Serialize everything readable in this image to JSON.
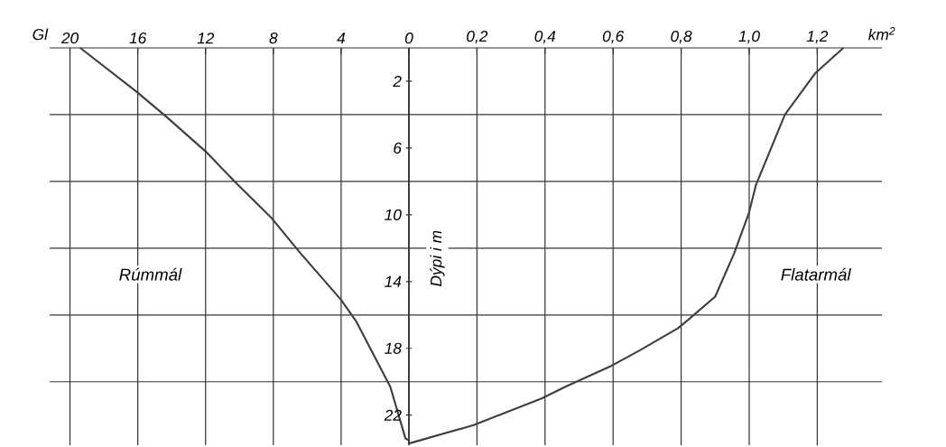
{
  "chart_data": [
    {
      "type": "line",
      "xlabel": "Gl",
      "xlim": [
        21.2,
        0
      ],
      "xticks": [
        20,
        16,
        12,
        8,
        4,
        0
      ],
      "ylim": [
        23.8,
        0
      ],
      "yticks": [
        2,
        6,
        10,
        14,
        18,
        22
      ],
      "tick_labels": "x",
      "grid": "x",
      "ref_lines": [
        {
          "axis": "y",
          "value": 4
        },
        {
          "axis": "y",
          "value": 8
        },
        {
          "axis": "y",
          "value": 12
        },
        {
          "axis": "y",
          "value": 16
        },
        {
          "axis": "y",
          "value": 20
        }
      ],
      "series": [
        {
          "name": "Rúmmál",
          "color": "#3b423d",
          "x": [
            19.4,
            16.1,
            14.4,
            12.0,
            10.1,
            8.1,
            6.4,
            4.0,
            3.1,
            1.1,
            0.2,
            0
          ],
          "values": [
            0,
            2.6,
            4.05,
            6.2,
            8.2,
            10.2,
            12.3,
            15.1,
            16.4,
            20.3,
            23.4,
            23.5
          ]
        }
      ]
    },
    {
      "type": "line",
      "xlabel": "km$^{2}$",
      "ylabel": "Dýpi i m",
      "xlim": [
        0,
        1.39
      ],
      "xticks": [
        {
          "value": 0,
          "label": null
        },
        {
          "value": 0.2,
          "label": "0,2"
        },
        {
          "value": 0.4,
          "label": "0,4"
        },
        {
          "value": 0.6,
          "label": "0,6"
        },
        {
          "value": 0.8,
          "label": "0,8"
        },
        {
          "value": 1.0,
          "label": "1,0"
        },
        {
          "value": 1.2,
          "label": "1,2"
        }
      ],
      "ylim": [
        23.8,
        0
      ],
      "yticks": [
        2,
        6,
        10,
        14,
        18,
        22
      ],
      "grid": "x",
      "ref_lines": [
        {
          "axis": "y",
          "value": 4
        },
        {
          "axis": "y",
          "value": 8
        },
        {
          "axis": "y",
          "value": 12
        },
        {
          "axis": "y",
          "value": 16
        },
        {
          "axis": "y",
          "value": 20
        }
      ],
      "series": [
        {
          "name": "Flatarmál",
          "color": "#3b423d",
          "x": [
            1.277,
            1.195,
            1.105,
            1.02,
            0.999,
            0.956,
            0.9,
            0.82,
            0.79,
            0.68,
            0.59,
            0.46,
            0.39,
            0.19,
            0
          ],
          "values": [
            0,
            1.5,
            4,
            8.2,
            9.9,
            12.3,
            14.9,
            16.3,
            16.8,
            18.1,
            19.1,
            20.3,
            21.0,
            22.6,
            23.7
          ]
        }
      ]
    }
  ]
}
